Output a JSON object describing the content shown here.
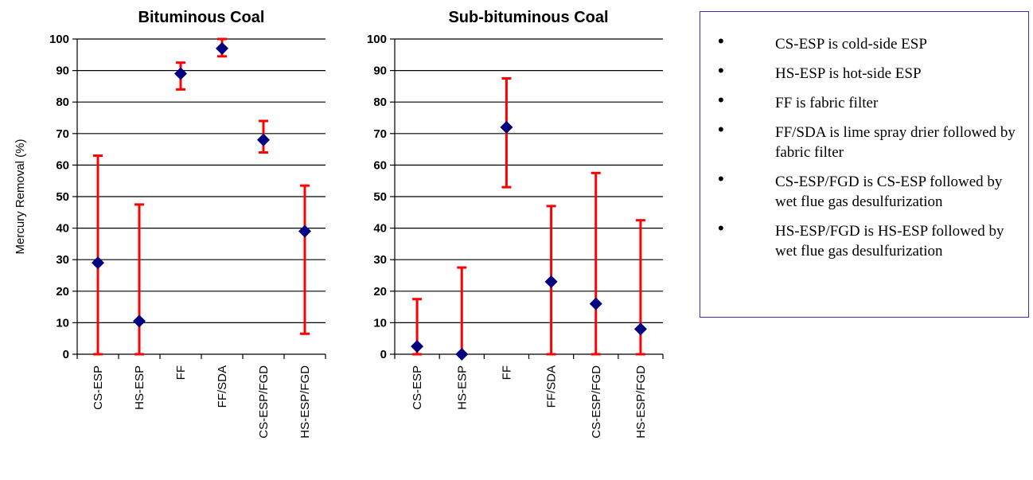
{
  "chart_data": [
    {
      "type": "scatter",
      "title": "Bituminous Coal",
      "ylabel": "Mercury Removal (%)",
      "xlabel": "",
      "ylim": [
        0,
        100
      ],
      "yticks": [
        0,
        10,
        20,
        30,
        40,
        50,
        60,
        70,
        80,
        90,
        100
      ],
      "grid": true,
      "categories": [
        "CS-ESP",
        "HS-ESP",
        "FF",
        "FF/SDA",
        "CS-ESP/FGD",
        "HS-ESP/FGD"
      ],
      "values": [
        29,
        10.5,
        89,
        97,
        68,
        39
      ],
      "error_low": [
        0,
        0,
        84,
        94.5,
        64,
        6.5
      ],
      "error_high": [
        63,
        47.5,
        92.5,
        100,
        74,
        53.5
      ],
      "marker_color": "#000080",
      "error_color": "#ff0000"
    },
    {
      "type": "scatter",
      "title": "Sub-bituminous Coal",
      "ylabel": "",
      "xlabel": "",
      "ylim": [
        0,
        100
      ],
      "yticks": [
        0,
        10,
        20,
        30,
        40,
        50,
        60,
        70,
        80,
        90,
        100
      ],
      "grid": true,
      "categories": [
        "CS-ESP",
        "HS-ESP",
        "FF",
        "FF/SDA",
        "CS-ESP/FGD",
        "HS-ESP/FGD"
      ],
      "values": [
        2.5,
        0,
        72,
        23,
        16,
        8
      ],
      "error_low": [
        0,
        0,
        53,
        0,
        0,
        0
      ],
      "error_high": [
        17.5,
        27.5,
        87.5,
        47,
        57.5,
        42.5
      ],
      "marker_color": "#000080",
      "error_color": "#ff0000"
    }
  ],
  "legend": {
    "border_color": "#3030b0",
    "items": [
      "CS-ESP is cold-side ESP",
      "HS-ESP is hot-side ESP",
      "FF is fabric filter",
      "FF/SDA is lime spray drier followed by fabric filter",
      "CS-ESP/FGD is CS-ESP followed by wet flue gas desulfurization",
      "HS-ESP/FGD is HS-ESP followed by wet flue gas desulfurization"
    ]
  }
}
